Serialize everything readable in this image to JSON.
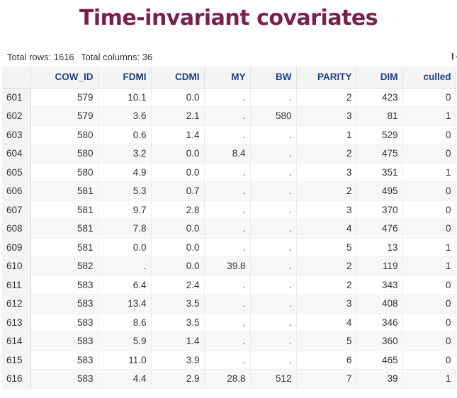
{
  "title": "Time-invariant covariates",
  "meta": {
    "total_rows": "Total rows: 1616",
    "total_columns": "Total columns: 36",
    "nav_glyph": "I◄"
  },
  "table": {
    "columns": [
      "",
      "COW_ID",
      "FDMI",
      "CDMI",
      "MY",
      "BW",
      "PARITY",
      "DIM",
      "culled"
    ],
    "rows": [
      [
        "601",
        "579",
        "10.1",
        "0.0",
        ".",
        ".",
        "2",
        "423",
        "0"
      ],
      [
        "602",
        "579",
        "3.6",
        "2.1",
        ".",
        "580",
        "3",
        "81",
        "1"
      ],
      [
        "603",
        "580",
        "0.6",
        "1.4",
        ".",
        ".",
        "1",
        "529",
        "0"
      ],
      [
        "604",
        "580",
        "3.2",
        "0.0",
        "8.4",
        ".",
        "2",
        "475",
        "0"
      ],
      [
        "605",
        "580",
        "4.9",
        "0.0",
        ".",
        ".",
        "3",
        "351",
        "1"
      ],
      [
        "606",
        "581",
        "5.3",
        "0.7",
        ".",
        ".",
        "2",
        "495",
        "0"
      ],
      [
        "607",
        "581",
        "9.7",
        "2.8",
        ".",
        ".",
        "3",
        "370",
        "0"
      ],
      [
        "608",
        "581",
        "7.8",
        "0.0",
        ".",
        ".",
        "4",
        "476",
        "0"
      ],
      [
        "609",
        "581",
        "0.0",
        "0.0",
        ".",
        ".",
        "5",
        "13",
        "1"
      ],
      [
        "610",
        "582",
        ".",
        "0.0",
        "39.8",
        ".",
        "2",
        "119",
        "1"
      ],
      [
        "611",
        "583",
        "6.4",
        "2.4",
        ".",
        ".",
        "2",
        "343",
        "0"
      ],
      [
        "612",
        "583",
        "13.4",
        "3.5",
        ".",
        ".",
        "3",
        "408",
        "0"
      ],
      [
        "613",
        "583",
        "8.6",
        "3.5",
        ".",
        ".",
        "4",
        "346",
        "0"
      ],
      [
        "614",
        "583",
        "5.9",
        "1.4",
        ".",
        ".",
        "5",
        "360",
        "0"
      ],
      [
        "615",
        "583",
        "11.0",
        "3.9",
        ".",
        ".",
        "6",
        "465",
        "0"
      ],
      [
        "616",
        "583",
        "4.4",
        "2.9",
        "28.8",
        "512",
        "7",
        "39",
        "1"
      ]
    ]
  }
}
